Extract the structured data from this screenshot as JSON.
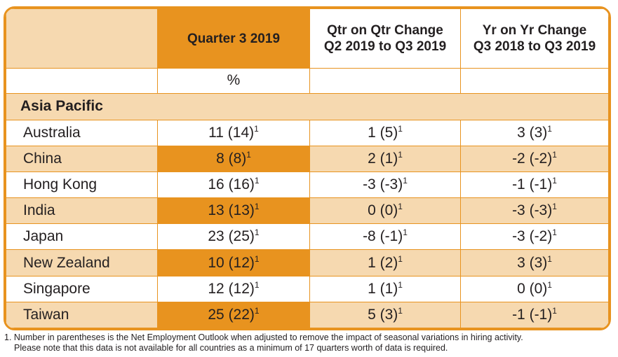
{
  "header": {
    "col0": "",
    "col1": "Quarter 3 2019",
    "col2_line1": "Qtr on Qtr Change",
    "col2_line2": "Q2 2019 to Q3 2019",
    "col3_line1": "Yr on Yr Change",
    "col3_line2": "Q3 2018 to Q3 2019"
  },
  "unit_row": {
    "col1": "%"
  },
  "region": "Asia Pacific",
  "footnote_marker": "1",
  "rows": [
    {
      "country": "Australia",
      "q3": "11 (14)",
      "qoq": "1 (5)",
      "yoy": "3 (3)"
    },
    {
      "country": "China",
      "q3": "8 (8)",
      "qoq": "2 (1)",
      "yoy": "-2 (-2)"
    },
    {
      "country": "Hong Kong",
      "q3": "16 (16)",
      "qoq": "-3 (-3)",
      "yoy": "-1 (-1)"
    },
    {
      "country": "India",
      "q3": "13 (13)",
      "qoq": "0 (0)",
      "yoy": "-3 (-3)"
    },
    {
      "country": "Japan",
      "q3": "23 (25)",
      "qoq": "-8 (-1)",
      "yoy": "-3 (-2)"
    },
    {
      "country": "New Zealand",
      "q3": "10 (12)",
      "qoq": "1 (2)",
      "yoy": "3 (3)"
    },
    {
      "country": "Singapore",
      "q3": "12 (12)",
      "qoq": "1 (1)",
      "yoy": "0 (0)"
    },
    {
      "country": "Taiwan",
      "q3": "25 (22)",
      "qoq": "5 (3)",
      "yoy": "-1 (-1)"
    }
  ],
  "footnote": {
    "line1": "1. Number in parentheses is the Net Employment Outlook when adjusted to remove the impact of seasonal variations in hiring activity.",
    "line2": "Please note that this data is not available for all countries as a minimum of 17 quarters worth of data is required."
  },
  "colors": {
    "accent": "#e8931f",
    "light": "#f6d9b0",
    "text": "#231f20"
  }
}
